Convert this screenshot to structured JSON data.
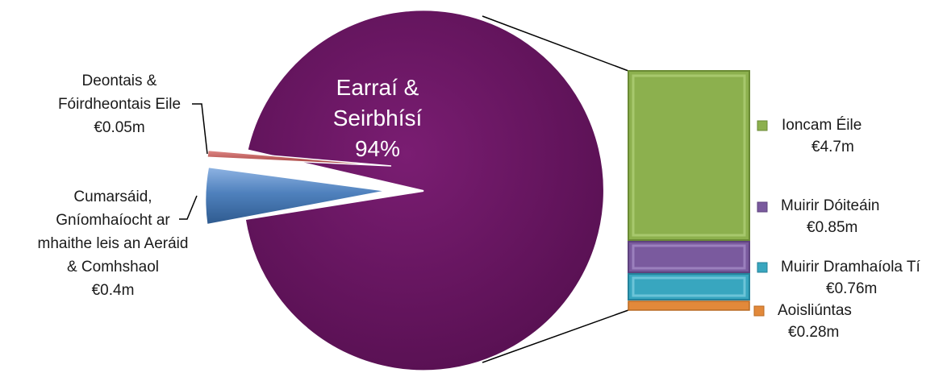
{
  "chart_data": {
    "type": "bar-of-pie",
    "pie": {
      "slices": [
        {
          "name": "Earraí & Seirbhísí",
          "percent_label": "94%",
          "fraction": 0.94,
          "color": "#66155f"
        },
        {
          "name": "Cumarsáid, Gníomhaíocht ar mhaithe leis an Aeráid & Comhshaol",
          "value_label": "€0.4m",
          "value": 0.4,
          "color": "#4f81bd"
        },
        {
          "name": "Deontais & Fóirdheontais Eile",
          "value_label": "€0.05m",
          "value": 0.05,
          "color": "#c0504d"
        }
      ]
    },
    "bar": {
      "segments": [
        {
          "name": "Ioncam Éile",
          "value_label": "€4.7m",
          "value": 4.7,
          "color": "#8cb04e"
        },
        {
          "name": "Muirir Dóiteáin",
          "value_label": "€0.85m",
          "value": 0.85,
          "color": "#7a5a9e"
        },
        {
          "name": "Muirir Dramhaíola  Tí",
          "value_label": "€0.76m",
          "value": 0.76,
          "color": "#38a6bf"
        },
        {
          "name": "Aoisliúntas",
          "value_label": "€0.28m",
          "value": 0.28,
          "color": "#e2893a"
        }
      ]
    }
  },
  "labels": {
    "pie_main": [
      "Earraí &",
      "Seirbhísí",
      "94%"
    ],
    "deontais": [
      "Deontais &",
      "Fóirdheontais Eile",
      "€0.05m"
    ],
    "cumarsaid": [
      "Cumarsáid,",
      "Gníomhaíocht ar",
      "mhaithe leis an  Aeráid",
      "& Comhshaol",
      "€0.4m"
    ],
    "bar": [
      [
        "Ioncam Éile",
        "€4.7m"
      ],
      [
        "Muirir Dóiteáin",
        "€0.85m"
      ],
      [
        "Muirir Dramhaíola  Tí",
        "€0.76m"
      ],
      [
        "Aoisliúntas",
        "€0.28m"
      ]
    ]
  }
}
